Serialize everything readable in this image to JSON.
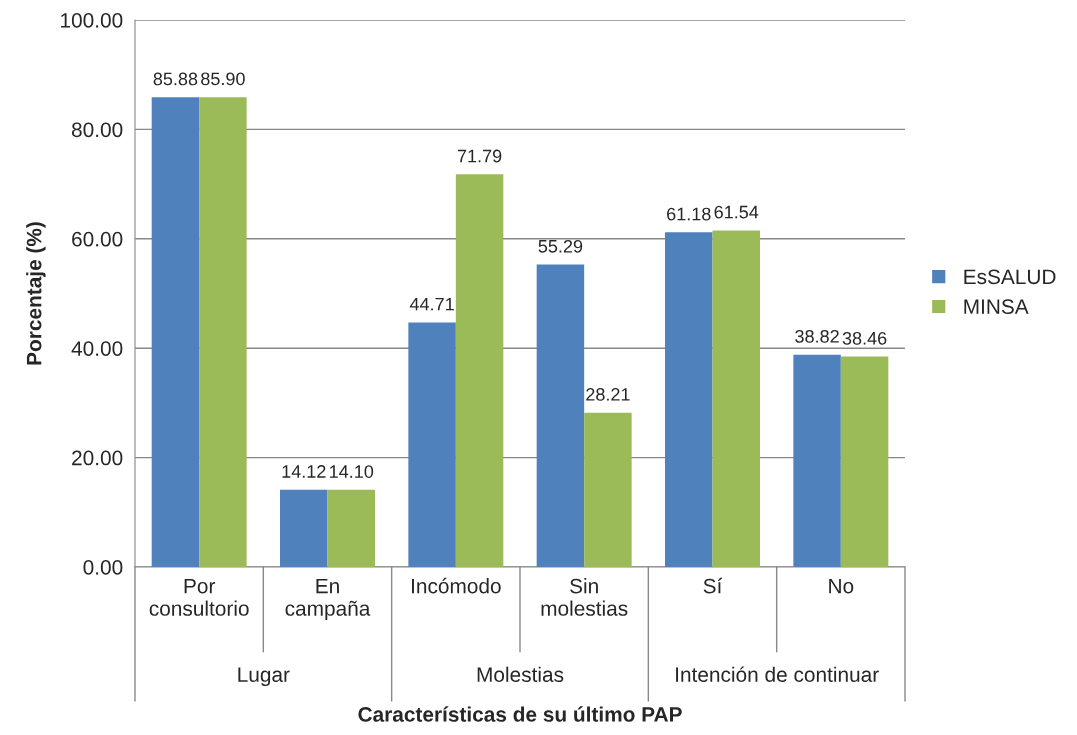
{
  "chart_data": {
    "type": "bar",
    "xlabel": "Características de su último PAP",
    "ylabel": "Porcentaje (%)",
    "categories": [
      "Por\nconsultorio",
      "En\ncampaña",
      "Incómodo",
      "Sin\nmolestias",
      "Sí",
      "No"
    ],
    "annotations": [
      "Lugar",
      "Molestias",
      "Intención de continuar"
    ],
    "series": [
      {
        "name": "EsSALUD",
        "color": "#4f81bd",
        "values": [
          85.88,
          14.12,
          44.71,
          55.29,
          61.18,
          38.82
        ],
        "value_labels": [
          "85.88",
          "14.12",
          "44.71",
          "55.29",
          "61.18",
          "38.82"
        ]
      },
      {
        "name": "MINSA",
        "color": "#9bbb59",
        "values": [
          85.9,
          14.1,
          71.79,
          28.21,
          61.54,
          38.46
        ],
        "value_labels": [
          "85.90",
          "14.10",
          "71.79",
          "28.21",
          "61.54",
          "38.46"
        ]
      }
    ],
    "ylim": [
      0,
      100
    ],
    "yticks": [
      {
        "value": 0,
        "label": "0.00"
      },
      {
        "value": 20,
        "label": "20.00"
      },
      {
        "value": 40,
        "label": "40.00"
      },
      {
        "value": 60,
        "label": "60.00"
      },
      {
        "value": 80,
        "label": "80.00"
      },
      {
        "value": 100,
        "label": "100.00"
      }
    ],
    "grid": "y",
    "legend": "right"
  }
}
